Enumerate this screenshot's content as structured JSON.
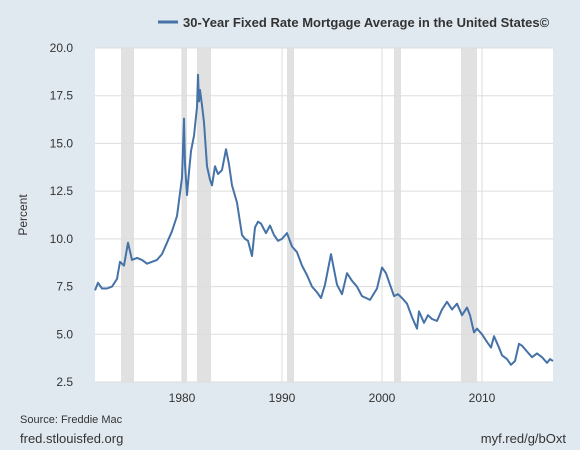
{
  "chart_data": {
    "type": "line",
    "title": "30-Year Fixed Rate Mortgage Average in the United States©",
    "ylabel": "Percent",
    "xlabel": "",
    "xlim": [
      1971.3,
      2017.1
    ],
    "ylim": [
      2.5,
      20.0
    ],
    "yticks": [
      "2.5",
      "5.0",
      "7.5",
      "10.0",
      "12.5",
      "15.0",
      "17.5",
      "20.0"
    ],
    "xticks": [
      "1980",
      "1990",
      "2000",
      "2010"
    ],
    "grid": true,
    "legend": "top",
    "line_color": "#4572a7",
    "recession_color": "#e1e1e1",
    "recessions": [
      [
        1973.9,
        1975.2
      ],
      [
        1980.0,
        1980.5
      ],
      [
        1981.5,
        1982.9
      ],
      [
        1990.5,
        1991.2
      ],
      [
        2001.2,
        2001.9
      ],
      [
        2007.9,
        2009.5
      ]
    ],
    "series": [
      {
        "name": "30-Year Fixed Rate Mortgage Average in the United States©",
        "x": [
          1971.3,
          1971.6,
          1972.0,
          1972.5,
          1973.0,
          1973.5,
          1973.8,
          1974.2,
          1974.6,
          1975.0,
          1975.5,
          1976.0,
          1976.5,
          1977.0,
          1977.5,
          1978.0,
          1978.5,
          1979.0,
          1979.5,
          1979.9,
          1980.0,
          1980.2,
          1980.3,
          1980.5,
          1980.7,
          1980.9,
          1981.2,
          1981.5,
          1981.6,
          1981.7,
          1981.8,
          1982.0,
          1982.2,
          1982.5,
          1982.8,
          1983.0,
          1983.3,
          1983.6,
          1984.0,
          1984.4,
          1984.7,
          1985.0,
          1985.5,
          1986.0,
          1986.3,
          1986.6,
          1987.0,
          1987.3,
          1987.6,
          1987.9,
          1988.4,
          1988.8,
          1989.2,
          1989.6,
          1990.0,
          1990.5,
          1991.0,
          1991.5,
          1992.0,
          1992.5,
          1993.0,
          1993.5,
          1993.9,
          1994.3,
          1994.9,
          1995.5,
          1996.0,
          1996.5,
          1997.0,
          1997.5,
          1998.0,
          1998.8,
          1999.5,
          2000.0,
          2000.4,
          2000.8,
          2001.2,
          2001.6,
          2002.0,
          2002.5,
          2003.0,
          2003.5,
          2003.7,
          2004.2,
          2004.6,
          2005.0,
          2005.5,
          2006.0,
          2006.5,
          2007.0,
          2007.5,
          2008.0,
          2008.5,
          2008.8,
          2009.2,
          2009.5,
          2010.0,
          2010.5,
          2010.9,
          2011.2,
          2011.7,
          2012.0,
          2012.5,
          2012.9,
          2013.3,
          2013.7,
          2014.0,
          2014.5,
          2015.0,
          2015.5,
          2016.0,
          2016.5,
          2016.8,
          2017.1
        ],
        "y": [
          7.3,
          7.7,
          7.4,
          7.4,
          7.5,
          7.9,
          8.8,
          8.6,
          9.8,
          8.9,
          9.0,
          8.9,
          8.7,
          8.8,
          8.9,
          9.2,
          9.8,
          10.4,
          11.2,
          12.8,
          13.2,
          16.3,
          13.9,
          12.3,
          13.5,
          14.6,
          15.4,
          16.9,
          18.6,
          17.2,
          17.8,
          17.0,
          16.1,
          13.8,
          13.1,
          12.8,
          13.8,
          13.4,
          13.6,
          14.7,
          13.9,
          12.8,
          11.9,
          10.2,
          10.0,
          9.9,
          9.1,
          10.6,
          10.9,
          10.8,
          10.3,
          10.7,
          10.2,
          9.9,
          10.0,
          10.3,
          9.6,
          9.3,
          8.6,
          8.1,
          7.5,
          7.2,
          6.9,
          7.6,
          9.2,
          7.6,
          7.1,
          8.2,
          7.8,
          7.5,
          7.0,
          6.8,
          7.4,
          8.5,
          8.2,
          7.6,
          7.0,
          7.1,
          6.9,
          6.6,
          5.9,
          5.3,
          6.2,
          5.6,
          6.0,
          5.8,
          5.7,
          6.3,
          6.7,
          6.3,
          6.6,
          6.0,
          6.4,
          6.0,
          5.1,
          5.3,
          5.0,
          4.6,
          4.3,
          4.9,
          4.3,
          3.9,
          3.7,
          3.4,
          3.6,
          4.5,
          4.4,
          4.1,
          3.8,
          4.0,
          3.8,
          3.5,
          3.7,
          3.6
        ]
      }
    ]
  },
  "footer": {
    "source": "Source: Freddie Mac",
    "site": "fred.stlouisfed.org",
    "shortlink": "myf.red/g/bOxt"
  }
}
